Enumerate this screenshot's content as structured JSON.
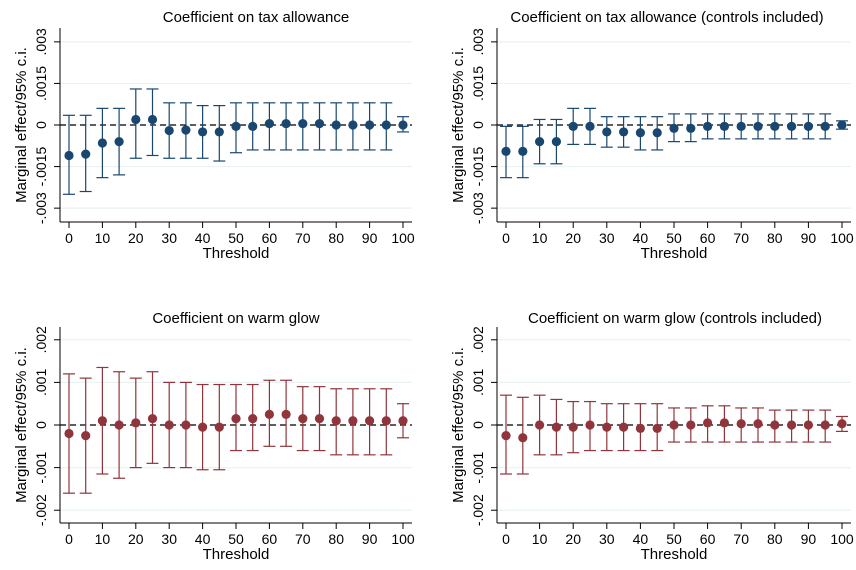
{
  "colors": {
    "series_top": "#1a476f",
    "series_bottom": "#90353b",
    "grid": "#eaf2f3",
    "axis": "#000000"
  },
  "chart_data": [
    {
      "type": "scatter",
      "title": "Coefficient on tax allowance",
      "xlabel": "Threshold",
      "ylabel": "Marginal effect/95% c.i.",
      "x_ticks": [
        "0",
        "10",
        "20",
        "30",
        "40",
        "50",
        "60",
        "70",
        "80",
        "90",
        "100"
      ],
      "y_ticks": [
        {
          "value": -0.003,
          "label": "-.003"
        },
        {
          "value": -0.0015,
          "label": "-.0015"
        },
        {
          "value": 0,
          "label": "0"
        },
        {
          "value": 0.0015,
          "label": ".0015"
        },
        {
          "value": 0.003,
          "label": ".003"
        }
      ],
      "xlim": [
        0,
        100
      ],
      "ylim": [
        -0.0035,
        0.0035
      ],
      "grid": true,
      "zero_line": "dashed",
      "series": [
        {
          "x": [
            0,
            5,
            10,
            15,
            20,
            25,
            30,
            35,
            40,
            45,
            50,
            55,
            60,
            65,
            70,
            75,
            80,
            85,
            90,
            95,
            100
          ],
          "y": [
            -0.0011,
            -0.00105,
            -0.00065,
            -0.0006,
            0.0002,
            0.0002,
            -0.0002,
            -0.00018,
            -0.00025,
            -0.00025,
            -5e-05,
            -5e-05,
            5e-05,
            5e-05,
            5e-05,
            5e-05,
            0,
            0,
            0,
            0,
            0
          ],
          "low": [
            -0.0025,
            -0.0024,
            -0.0019,
            -0.0018,
            -0.0012,
            -0.0011,
            -0.0012,
            -0.0012,
            -0.0012,
            -0.0013,
            -0.001,
            -0.0009,
            -0.0009,
            -0.0009,
            -0.0009,
            -0.0009,
            -0.0009,
            -0.0009,
            -0.0009,
            -0.0009,
            -0.00025
          ],
          "high": [
            0.00035,
            0.00035,
            0.0006,
            0.0006,
            0.0013,
            0.0013,
            0.0008,
            0.0008,
            0.0007,
            0.0007,
            0.0008,
            0.0008,
            0.0008,
            0.0008,
            0.0008,
            0.0008,
            0.0008,
            0.0008,
            0.0008,
            0.0008,
            0.0003
          ]
        }
      ]
    },
    {
      "type": "scatter",
      "title": "Coefficient on tax allowance (controls included)",
      "xlabel": "Threshold",
      "ylabel": "Marginal effect/95% c.i.",
      "x_ticks": [
        "0",
        "10",
        "20",
        "30",
        "40",
        "50",
        "60",
        "70",
        "80",
        "90",
        "100"
      ],
      "y_ticks": [
        {
          "value": -0.003,
          "label": "-.003"
        },
        {
          "value": -0.0015,
          "label": "-.0015"
        },
        {
          "value": 0,
          "label": "0"
        },
        {
          "value": 0.0015,
          "label": ".0015"
        },
        {
          "value": 0.003,
          "label": ".003"
        }
      ],
      "xlim": [
        0,
        100
      ],
      "ylim": [
        -0.0035,
        0.0035
      ],
      "grid": true,
      "zero_line": "dashed",
      "series": [
        {
          "x": [
            0,
            5,
            10,
            15,
            20,
            25,
            30,
            35,
            40,
            45,
            50,
            55,
            60,
            65,
            70,
            75,
            80,
            85,
            90,
            95,
            100
          ],
          "y": [
            -0.00095,
            -0.00095,
            -0.0006,
            -0.0006,
            -5e-05,
            -5e-05,
            -0.00025,
            -0.00025,
            -0.00028,
            -0.00028,
            -0.00012,
            -0.00012,
            -5e-05,
            -5e-05,
            -5e-05,
            -5e-05,
            -5e-05,
            -5e-05,
            -5e-05,
            -5e-05,
            0
          ],
          "low": [
            -0.0019,
            -0.0019,
            -0.0014,
            -0.0014,
            -0.0007,
            -0.0007,
            -0.0008,
            -0.0008,
            -0.0009,
            -0.0009,
            -0.0006,
            -0.0006,
            -0.0005,
            -0.0005,
            -0.0005,
            -0.0005,
            -0.0005,
            -0.0005,
            -0.0005,
            -0.0005,
            -0.00015
          ],
          "high": [
            -5e-05,
            -5e-05,
            0.0002,
            0.0002,
            0.0006,
            0.0006,
            0.0003,
            0.0003,
            0.0003,
            0.0003,
            0.0004,
            0.0004,
            0.0004,
            0.0004,
            0.0004,
            0.0004,
            0.0004,
            0.0004,
            0.0004,
            0.0004,
            0.00015
          ]
        }
      ]
    },
    {
      "type": "scatter",
      "title": "Coefficient on warm glow",
      "xlabel": "Threshold",
      "ylabel": "Marginal effect/95% c.i.",
      "x_ticks": [
        "0",
        "10",
        "20",
        "30",
        "40",
        "50",
        "60",
        "70",
        "80",
        "90",
        "100"
      ],
      "y_ticks": [
        {
          "value": -0.002,
          "label": "-.002"
        },
        {
          "value": -0.001,
          "label": "-.001"
        },
        {
          "value": 0,
          "label": "0"
        },
        {
          "value": 0.001,
          "label": ".001"
        },
        {
          "value": 0.002,
          "label": ".002"
        }
      ],
      "xlim": [
        0,
        100
      ],
      "ylim": [
        -0.0023,
        0.0023
      ],
      "grid": true,
      "zero_line": "dashed",
      "series": [
        {
          "x": [
            0,
            5,
            10,
            15,
            20,
            25,
            30,
            35,
            40,
            45,
            50,
            55,
            60,
            65,
            70,
            75,
            80,
            85,
            90,
            95,
            100
          ],
          "y": [
            -0.0002,
            -0.00025,
            0.0001,
            0.0,
            5e-05,
            0.00015,
            0.0,
            0.0,
            -5e-05,
            -5e-05,
            0.00015,
            0.00015,
            0.00025,
            0.00025,
            0.00015,
            0.00015,
            0.0001,
            0.0001,
            0.0001,
            0.0001,
            0.0001
          ],
          "low": [
            -0.0016,
            -0.0016,
            -0.00115,
            -0.00125,
            -0.001,
            -0.0009,
            -0.001,
            -0.001,
            -0.00105,
            -0.00105,
            -0.0006,
            -0.0006,
            -0.0005,
            -0.0005,
            -0.0006,
            -0.0006,
            -0.0007,
            -0.0007,
            -0.0007,
            -0.0007,
            -0.0003
          ],
          "high": [
            0.0012,
            0.0011,
            0.00135,
            0.00125,
            0.0011,
            0.00125,
            0.001,
            0.001,
            0.00095,
            0.00095,
            0.00095,
            0.00095,
            0.00105,
            0.00105,
            0.0009,
            0.0009,
            0.00085,
            0.00085,
            0.00085,
            0.00085,
            0.0005
          ]
        }
      ]
    },
    {
      "type": "scatter",
      "title": "Coefficient on warm glow (controls included)",
      "xlabel": "Threshold",
      "ylabel": "Marginal effect/95% c.i.",
      "x_ticks": [
        "0",
        "10",
        "20",
        "30",
        "40",
        "50",
        "60",
        "70",
        "80",
        "90",
        "100"
      ],
      "y_ticks": [
        {
          "value": -0.002,
          "label": "-.002"
        },
        {
          "value": -0.001,
          "label": "-.001"
        },
        {
          "value": 0,
          "label": "0"
        },
        {
          "value": 0.001,
          "label": ".001"
        },
        {
          "value": 0.002,
          "label": ".002"
        }
      ],
      "xlim": [
        0,
        100
      ],
      "ylim": [
        -0.0023,
        0.0023
      ],
      "grid": true,
      "zero_line": "dashed",
      "series": [
        {
          "x": [
            0,
            5,
            10,
            15,
            20,
            25,
            30,
            35,
            40,
            45,
            50,
            55,
            60,
            65,
            70,
            75,
            80,
            85,
            90,
            95,
            100
          ],
          "y": [
            -0.00025,
            -0.0003,
            0.0,
            -5e-05,
            -5e-05,
            0.0,
            -5e-05,
            -5e-05,
            -8e-05,
            -8e-05,
            0.0,
            0.0,
            5e-05,
            5e-05,
            3e-05,
            3e-05,
            0.0,
            0.0,
            0.0,
            0.0,
            3e-05
          ],
          "low": [
            -0.00115,
            -0.00115,
            -0.0007,
            -0.0007,
            -0.00065,
            -0.0006,
            -0.0006,
            -0.0006,
            -0.0006,
            -0.0006,
            -0.0004,
            -0.0004,
            -0.0004,
            -0.0004,
            -0.0004,
            -0.0004,
            -0.0004,
            -0.0004,
            -0.0004,
            -0.0004,
            -0.00015
          ],
          "high": [
            0.0007,
            0.00065,
            0.0007,
            0.0006,
            0.00055,
            0.00055,
            0.0005,
            0.0005,
            0.0005,
            0.0005,
            0.0004,
            0.0004,
            0.00045,
            0.00045,
            0.0004,
            0.0004,
            0.00035,
            0.00035,
            0.00035,
            0.00035,
            0.0002
          ]
        }
      ]
    }
  ]
}
